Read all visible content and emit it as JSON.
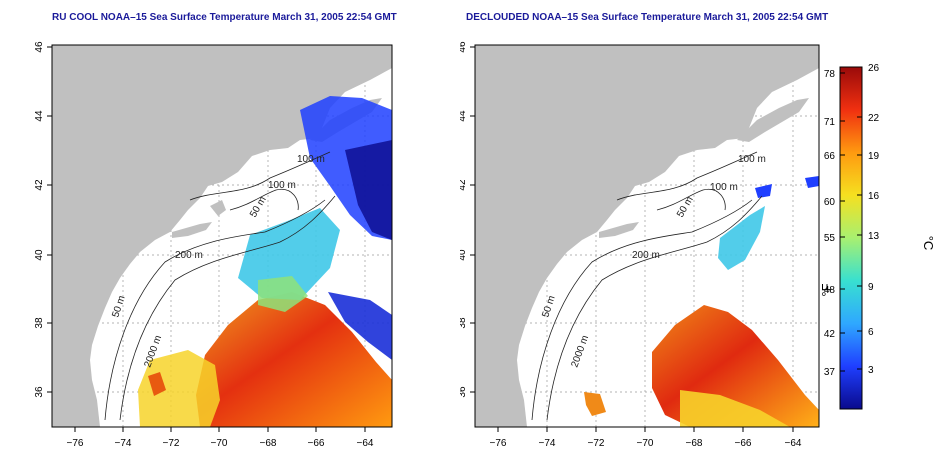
{
  "panels": [
    {
      "title": "RU COOL NOAA–15 Sea Surface Temperature March 31, 2005 22:54 GMT",
      "clouds_removed": false
    },
    {
      "title": "DECLOUDED NOAA–15 Sea Surface Temperature March 31, 2005 22:54 GMT",
      "clouds_removed": true
    }
  ],
  "axes": {
    "lon_ticks": [
      "−76",
      "−74",
      "−72",
      "−70",
      "−68",
      "−66",
      "−64"
    ],
    "lat_ticks": [
      "36",
      "38",
      "40",
      "42",
      "44",
      "46"
    ],
    "lon_range": [
      -77,
      -63
    ],
    "lat_range": [
      35,
      46
    ]
  },
  "isobaths": [
    "100 m",
    "100 m",
    "50 m",
    "200 m",
    "50 m",
    "2000 m"
  ],
  "colorbar": {
    "fahrenheit_label": "°F",
    "celsius_label": "°C",
    "fahrenheit_ticks": [
      "78",
      "71",
      "66",
      "60",
      "55",
      "48",
      "42",
      "37"
    ],
    "celsius_ticks": [
      "26",
      "22",
      "19",
      "16",
      "13",
      "9",
      "6",
      "3"
    ],
    "colors": [
      "#0a0a8c",
      "#1f3fff",
      "#2fa8ff",
      "#38e0d0",
      "#a8f070",
      "#f5e020",
      "#ff9a10",
      "#f03010",
      "#9a0a0a"
    ]
  },
  "colors": {
    "land": "#c0c0c0",
    "ocean": "#ffffff",
    "title": "#1a1a9a"
  }
}
